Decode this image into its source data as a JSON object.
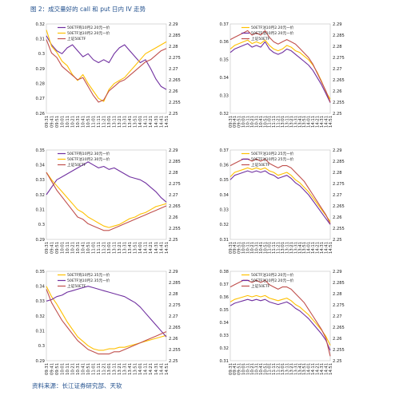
{
  "title": "图 2：成交量好的 call 和 put 日内 IV 走势",
  "source": "资料来源：长江证券研究部、天软",
  "colors": {
    "series_a": "#7030a0",
    "series_b": "#ffc000",
    "series_c": "#c0504d"
  },
  "time_ticks": [
    "09:31",
    "09:41",
    "09:51",
    "10:01",
    "10:11",
    "10:21",
    "10:31",
    "10:41",
    "10:51",
    "11:01",
    "11:11",
    "11:21",
    "13:01",
    "13:11",
    "13:21",
    "13:31",
    "13:41",
    "13:51",
    "14:01",
    "14:11",
    "14:21",
    "14:31",
    "14:41",
    "14:51"
  ],
  "chart_data": [
    {
      "type": "line",
      "y_ticks": [
        "0.32",
        "0.31",
        "0.3",
        "0.29",
        "0.28",
        "0.27",
        "0.26"
      ],
      "y_ticks2": [
        "2.29",
        "2.285",
        "2.28",
        "2.275",
        "2.27",
        "2.265",
        "2.26",
        "2.255",
        "2.25"
      ],
      "ylim": [
        0.26,
        0.32
      ],
      "ylim2": [
        2.25,
        2.29
      ],
      "legend_placement": "top-left",
      "series": [
        {
          "name": "50ETF购10月2.20元一价",
          "axis": "left",
          "color": "#7030a0",
          "values": [
            0.312,
            0.306,
            0.302,
            0.3,
            0.304,
            0.306,
            0.302,
            0.298,
            0.3,
            0.296,
            0.294,
            0.296,
            0.294,
            0.3,
            0.304,
            0.306,
            0.302,
            0.298,
            0.294,
            0.296,
            0.29,
            0.283,
            0.278,
            0.276
          ]
        },
        {
          "name": "50ETF沽10月2.20元一价",
          "axis": "left",
          "color": "#ffc000",
          "values": [
            0.316,
            0.305,
            0.301,
            0.295,
            0.292,
            0.286,
            0.282,
            0.286,
            0.28,
            0.275,
            0.27,
            0.268,
            0.276,
            0.28,
            0.282,
            0.284,
            0.288,
            0.292,
            0.296,
            0.3,
            0.302,
            0.304,
            0.306,
            0.308
          ]
        },
        {
          "name": "上证50ETF",
          "axis": "right",
          "color": "#c0504d",
          "values": [
            2.283,
            2.277,
            2.275,
            2.271,
            2.269,
            2.267,
            2.265,
            2.266,
            2.262,
            2.258,
            2.255,
            2.256,
            2.26,
            2.262,
            2.264,
            2.265,
            2.267,
            2.269,
            2.271,
            2.273,
            2.274,
            2.276,
            2.278,
            2.279
          ]
        }
      ]
    },
    {
      "type": "line",
      "y_ticks": [
        "0.37",
        "0.36",
        "0.35",
        "0.34",
        "0.33",
        "0.32"
      ],
      "y_ticks2": [
        "2.29",
        "2.285",
        "2.28",
        "2.275",
        "2.27",
        "2.265",
        "2.26",
        "2.255",
        "2.25"
      ],
      "ylim": [
        0.32,
        0.37
      ],
      "ylim2": [
        2.25,
        2.29
      ],
      "legend_placement": "top-left",
      "series": [
        {
          "name": "50ETF沽10月2.20元一价",
          "axis": "left",
          "color": "#ffc000",
          "values": [
            0.356,
            0.358,
            0.359,
            0.36,
            0.361,
            0.359,
            0.36,
            0.359,
            0.361,
            0.358,
            0.356,
            0.355,
            0.356,
            0.358,
            0.357,
            0.355,
            0.354,
            0.352,
            0.35,
            0.347,
            0.343,
            0.338,
            0.332,
            0.328
          ]
        },
        {
          "name": "50ETF沽10月2.20元一价",
          "axis": "left",
          "color": "#7030a0",
          "values": [
            0.354,
            0.356,
            0.357,
            0.358,
            0.359,
            0.357,
            0.358,
            0.357,
            0.36,
            0.356,
            0.354,
            0.353,
            0.354,
            0.356,
            0.355,
            0.353,
            0.351,
            0.349,
            0.347,
            0.344,
            0.34,
            0.336,
            0.331,
            0.326
          ]
        },
        {
          "name": "上证50ETF",
          "axis": "right",
          "color": "#c0504d",
          "values": [
            2.283,
            2.284,
            2.285,
            2.286,
            2.287,
            2.285,
            2.286,
            2.285,
            2.287,
            2.284,
            2.282,
            2.281,
            2.282,
            2.283,
            2.282,
            2.281,
            2.279,
            2.277,
            2.275,
            2.272,
            2.268,
            2.264,
            2.26,
            2.255
          ]
        }
      ]
    },
    {
      "type": "line",
      "y_ticks": [
        "0.35",
        "0.34",
        "0.33",
        "0.32",
        "0.31",
        "0.3",
        "0.29"
      ],
      "y_ticks2": [
        "2.29",
        "2.285",
        "2.28",
        "2.275",
        "2.27",
        "2.265",
        "2.26",
        "2.255",
        "2.25"
      ],
      "ylim": [
        0.29,
        0.35
      ],
      "ylim2": [
        2.25,
        2.29
      ],
      "legend_placement": "top-left",
      "series": [
        {
          "name": "50ETF购10月2.30元一价",
          "axis": "left",
          "color": "#7030a0",
          "values": [
            0.32,
            0.325,
            0.33,
            0.332,
            0.334,
            0.336,
            0.338,
            0.34,
            0.342,
            0.34,
            0.338,
            0.339,
            0.337,
            0.338,
            0.336,
            0.334,
            0.332,
            0.331,
            0.33,
            0.328,
            0.325,
            0.322,
            0.318,
            0.315
          ]
        },
        {
          "name": "50ETF沽10月2.30元一价",
          "axis": "left",
          "color": "#ffc000",
          "values": [
            0.335,
            0.33,
            0.326,
            0.322,
            0.318,
            0.314,
            0.31,
            0.308,
            0.305,
            0.303,
            0.301,
            0.299,
            0.298,
            0.299,
            0.3,
            0.302,
            0.304,
            0.305,
            0.307,
            0.308,
            0.31,
            0.312,
            0.313,
            0.314
          ]
        },
        {
          "name": "上证50ETF",
          "axis": "right",
          "color": "#c0504d",
          "values": [
            2.28,
            2.276,
            2.272,
            2.269,
            2.266,
            2.263,
            2.26,
            2.259,
            2.257,
            2.256,
            2.255,
            2.254,
            2.254,
            2.255,
            2.256,
            2.257,
            2.258,
            2.259,
            2.26,
            2.261,
            2.262,
            2.263,
            2.264,
            2.265
          ]
        }
      ]
    },
    {
      "type": "line",
      "y_ticks": [
        "0.37",
        "0.36",
        "0.35",
        "0.34",
        "0.33",
        "0.32",
        "0.31"
      ],
      "y_ticks2": [
        "2.29",
        "2.285",
        "2.28",
        "2.275",
        "2.27",
        "2.265",
        "2.26",
        "2.255",
        "2.25"
      ],
      "ylim": [
        0.31,
        0.37
      ],
      "ylim2": [
        2.25,
        2.29
      ],
      "legend_placement": "top-left",
      "series": [
        {
          "name": "50ETF沽10月2.25元一价",
          "axis": "left",
          "color": "#ffc000",
          "values": [
            0.352,
            0.355,
            0.356,
            0.357,
            0.358,
            0.357,
            0.358,
            0.357,
            0.358,
            0.356,
            0.355,
            0.353,
            0.354,
            0.355,
            0.353,
            0.35,
            0.348,
            0.345,
            0.342,
            0.338,
            0.334,
            0.33,
            0.326,
            0.322
          ]
        },
        {
          "name": "50ETF沽10月2.25元一价",
          "axis": "left",
          "color": "#7030a0",
          "values": [
            0.35,
            0.353,
            0.354,
            0.355,
            0.356,
            0.355,
            0.356,
            0.355,
            0.356,
            0.354,
            0.353,
            0.351,
            0.352,
            0.353,
            0.351,
            0.348,
            0.346,
            0.343,
            0.34,
            0.336,
            0.332,
            0.328,
            0.324,
            0.32
          ]
        },
        {
          "name": "上证50ETF",
          "axis": "right",
          "color": "#c0504d",
          "values": [
            2.283,
            2.284,
            2.285,
            2.286,
            2.286,
            2.285,
            2.286,
            2.285,
            2.286,
            2.284,
            2.283,
            2.282,
            2.283,
            2.283,
            2.282,
            2.28,
            2.278,
            2.276,
            2.273,
            2.27,
            2.267,
            2.264,
            2.261,
            2.257
          ]
        }
      ]
    },
    {
      "type": "line",
      "y_ticks": [
        "0.35",
        "0.34",
        "0.33",
        "0.32",
        "0.31",
        "0.3",
        "0.29"
      ],
      "y_ticks2": [
        "2.29",
        "2.285",
        "2.28",
        "2.275",
        "2.27",
        "2.265",
        "2.26",
        "2.255",
        "2.25"
      ],
      "ylim": [
        0.29,
        0.35
      ],
      "ylim2": [
        2.25,
        2.29
      ],
      "legend_placement": "top-left",
      "series": [
        {
          "name": "50ETF购10月2.35元一价",
          "axis": "left",
          "color": "#ffc000",
          "values": [
            0.34,
            0.333,
            0.328,
            0.322,
            0.316,
            0.311,
            0.306,
            0.303,
            0.3,
            0.298,
            0.297,
            0.297,
            0.298,
            0.298,
            0.299,
            0.299,
            0.3,
            0.301,
            0.302,
            0.303,
            0.304,
            0.305,
            0.306,
            0.307
          ]
        },
        {
          "name": "50ETF沽10月2.35元一价",
          "axis": "left",
          "color": "#7030a0",
          "values": [
            0.33,
            0.331,
            0.333,
            0.334,
            0.336,
            0.337,
            0.338,
            0.339,
            0.34,
            0.339,
            0.338,
            0.337,
            0.336,
            0.335,
            0.334,
            0.333,
            0.331,
            0.329,
            0.326,
            0.322,
            0.318,
            0.314,
            0.31,
            0.306
          ]
        },
        {
          "name": "上证50ETF",
          "axis": "right",
          "color": "#c0504d",
          "values": [
            2.282,
            2.276,
            2.272,
            2.268,
            2.265,
            2.262,
            2.259,
            2.257,
            2.255,
            2.254,
            2.253,
            2.253,
            2.253,
            2.254,
            2.254,
            2.255,
            2.256,
            2.257,
            2.258,
            2.259,
            2.26,
            2.261,
            2.262,
            2.263
          ]
        }
      ]
    },
    {
      "type": "line",
      "y_ticks": [
        "0.38",
        "0.37",
        "0.36",
        "0.35",
        "0.34",
        "0.33",
        "0.32",
        "0.31"
      ],
      "y_ticks2": [
        "2.29",
        "2.285",
        "2.28",
        "2.275",
        "2.27",
        "2.265",
        "2.26",
        "2.255",
        "2.25"
      ],
      "ylim": [
        0.31,
        0.38
      ],
      "ylim2": [
        2.25,
        2.29
      ],
      "legend_placement": "top-left",
      "series": [
        {
          "name": "50ETF沽10月2.20元一价",
          "axis": "left",
          "color": "#ffc000",
          "values": [
            0.356,
            0.358,
            0.359,
            0.36,
            0.361,
            0.36,
            0.361,
            0.36,
            0.361,
            0.359,
            0.358,
            0.357,
            0.358,
            0.359,
            0.357,
            0.354,
            0.352,
            0.349,
            0.346,
            0.342,
            0.338,
            0.334,
            0.329,
            0.322
          ]
        },
        {
          "name": "50ETF沽10月2.20元一价",
          "axis": "left",
          "color": "#7030a0",
          "values": [
            0.353,
            0.355,
            0.356,
            0.357,
            0.358,
            0.357,
            0.358,
            0.357,
            0.358,
            0.356,
            0.355,
            0.354,
            0.355,
            0.356,
            0.354,
            0.351,
            0.349,
            0.346,
            0.343,
            0.339,
            0.335,
            0.331,
            0.326,
            0.318
          ]
        },
        {
          "name": "上证50ETF",
          "axis": "right",
          "color": "#c0504d",
          "values": [
            2.283,
            2.284,
            2.285,
            2.286,
            2.286,
            2.285,
            2.286,
            2.285,
            2.286,
            2.284,
            2.283,
            2.282,
            2.283,
            2.283,
            2.282,
            2.28,
            2.278,
            2.276,
            2.273,
            2.27,
            2.267,
            2.264,
            2.26,
            2.252
          ]
        }
      ]
    }
  ]
}
